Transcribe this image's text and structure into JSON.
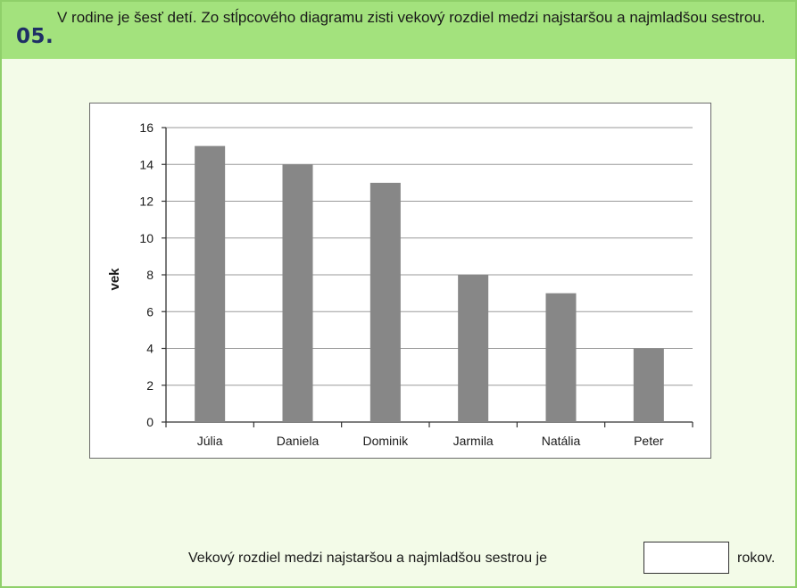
{
  "question": {
    "number": "05.",
    "text": "V rodine je šesť detí. Zo stĺpcového diagramu zisti vekový rozdiel medzi najstaršou a najmladšou sestrou."
  },
  "chart_data": {
    "type": "bar",
    "categories": [
      "Júlia",
      "Daniela",
      "Dominik",
      "Jarmila",
      "Natália",
      "Peter"
    ],
    "values": [
      15,
      14,
      13,
      8,
      7,
      4
    ],
    "ylabel": "vek",
    "xlabel": "",
    "ylim": [
      0,
      16
    ],
    "yticks": [
      "0",
      "2",
      "4",
      "6",
      "8",
      "10",
      "12",
      "14",
      "16"
    ],
    "grid": true,
    "bar_color": "#878787"
  },
  "answer": {
    "prompt": "Vekový rozdiel medzi najstaršou a najmladšou sestrou je",
    "value": "",
    "unit": "rokov."
  }
}
